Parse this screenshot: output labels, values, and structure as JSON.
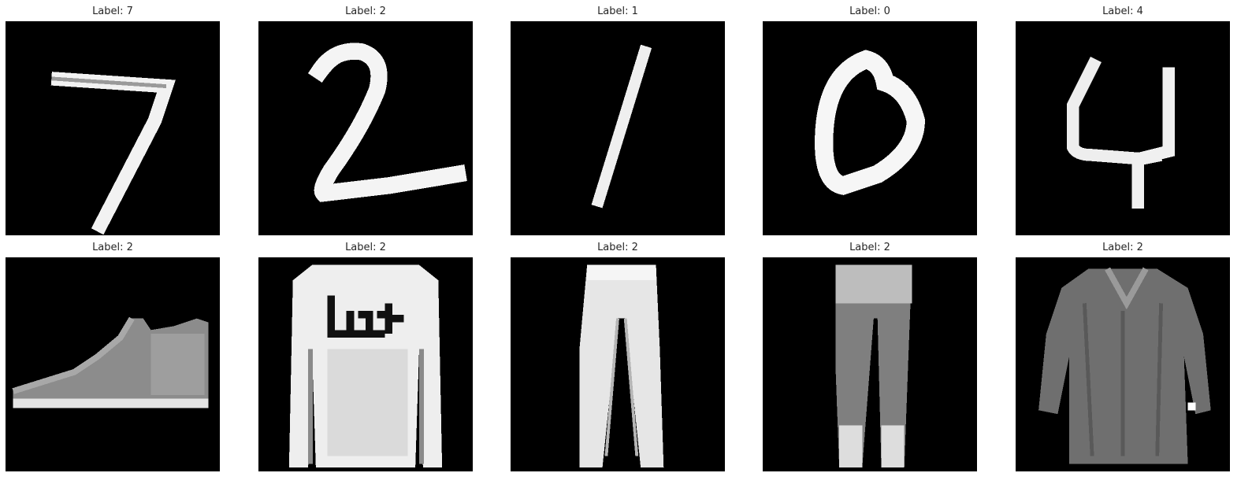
{
  "panels": [
    {
      "title": "Label: 7",
      "depicts": "digit-seven-icon"
    },
    {
      "title": "Label: 2",
      "depicts": "digit-two-icon"
    },
    {
      "title": "Label: 1",
      "depicts": "digit-one-icon"
    },
    {
      "title": "Label: 0",
      "depicts": "digit-zero-icon"
    },
    {
      "title": "Label: 4",
      "depicts": "digit-four-icon"
    },
    {
      "title": "Label: 2",
      "depicts": "ankle-boot-icon"
    },
    {
      "title": "Label: 2",
      "depicts": "pullover-icon"
    },
    {
      "title": "Label: 2",
      "depicts": "trouser-icon"
    },
    {
      "title": "Label: 2",
      "depicts": "trouser-icon"
    },
    {
      "title": "Label: 2",
      "depicts": "shirt-icon"
    }
  ]
}
